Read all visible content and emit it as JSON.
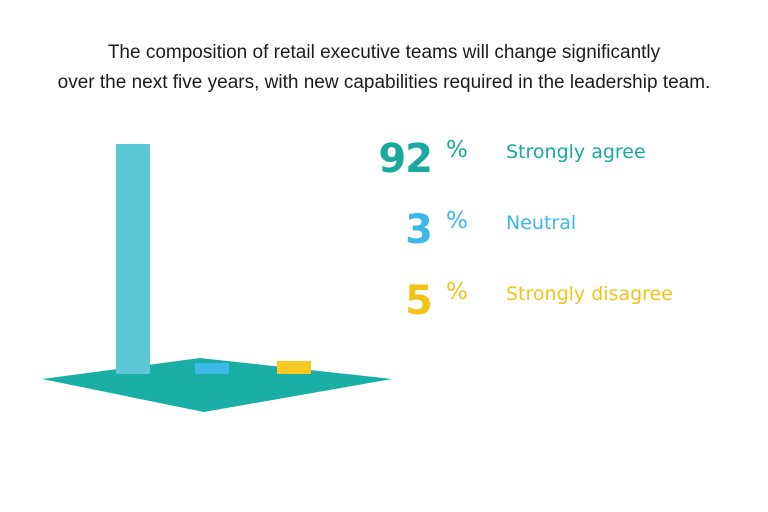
{
  "title_lines": [
    "The composition of retail executive teams will change significantly",
    "over the next five years, with new capabilities required in the leadership team."
  ],
  "colors": {
    "floor": "#1aaea6",
    "agree": "#5bc6d4",
    "neutral": "#3bb8e6",
    "disagree": "#f5c91f",
    "agree_text": "#1aa99e",
    "neutral_text": "#3bb8e6",
    "disagree_text": "#f2c418"
  },
  "chart_data": {
    "type": "bar",
    "categories": [
      "Strongly agree",
      "Neutral",
      "Strongly disagree"
    ],
    "values": [
      92,
      3,
      5
    ],
    "unit": "%",
    "ylim": [
      0,
      100
    ]
  },
  "stats": [
    {
      "value": "92",
      "unit": "%",
      "label": "Strongly agree"
    },
    {
      "value": "3",
      "unit": "%",
      "label": "Neutral"
    },
    {
      "value": "5",
      "unit": "%",
      "label": "Strongly disagree"
    }
  ]
}
